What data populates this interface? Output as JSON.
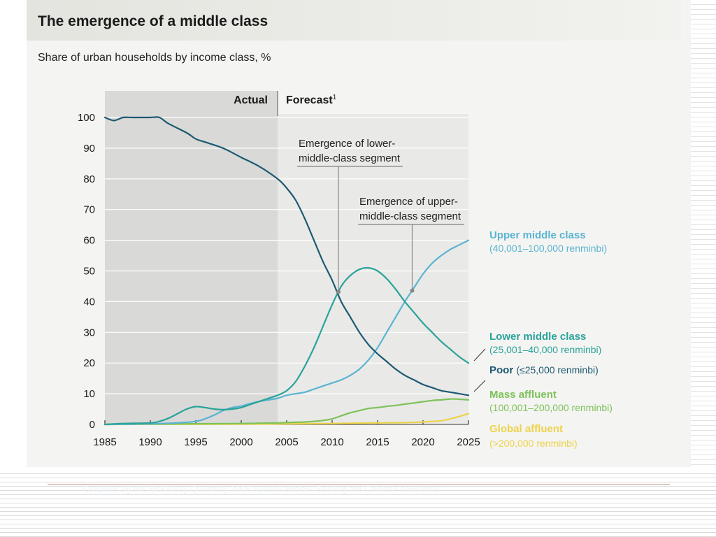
{
  "figure": {
    "title": "The emergence of a middle class",
    "subtitle": "Share of urban households by income class, %",
    "actual_label": "Actual",
    "forecast_label": "Forecast",
    "forecast_superscript": "1",
    "footer": "Graphics by the McKinsey Quarterly 2006 special edition: Serving the Chinese consumer"
  },
  "annotations": {
    "lower_line1": "Emergence of lower-",
    "lower_line2": "middle-class segment",
    "upper_line1": "Emergence of upper-",
    "upper_line2": "middle-class segment"
  },
  "legend": [
    {
      "name": "Upper middle class",
      "range": "(40,001–100,000 renminbi)",
      "color": "#5ab4d2"
    },
    {
      "name": "Lower middle class",
      "range": "(25,001–40,000 renminbi)",
      "color": "#2aa39a"
    },
    {
      "name": "Poor",
      "range": "(≤25,000 renminbi)",
      "color": "#1d5a72"
    },
    {
      "name": "Mass affluent",
      "range": "(100,001–200,000 renminbi)",
      "color": "#7dc25a"
    },
    {
      "name": "Global affluent",
      "range": "(>200,000 renminbi)",
      "color": "#ecd34a"
    }
  ],
  "chart_data": {
    "type": "line",
    "title": "The emergence of a middle class",
    "subtitle": "Share of urban households by income class, %",
    "x_ticks": [
      1985,
      1990,
      1995,
      2000,
      2005,
      2010,
      2015,
      2020,
      2025
    ],
    "y_ticks": [
      0,
      10,
      20,
      30,
      40,
      50,
      60,
      70,
      80,
      90,
      100
    ],
    "xlim": [
      1985,
      2025
    ],
    "ylim": [
      0,
      100
    ],
    "actual_range": [
      1985,
      2004
    ],
    "forecast_range": [
      2004,
      2025
    ],
    "grid": true,
    "legend_placement": "right",
    "series": [
      {
        "name": "Poor",
        "color": "#1d5a72",
        "x": [
          1985,
          1986,
          1987,
          1988,
          1990,
          1991,
          1992,
          1994,
          1995,
          1996,
          1998,
          2000,
          2002,
          2004,
          2005,
          2006,
          2007,
          2008,
          2009,
          2010,
          2011,
          2012,
          2013,
          2014,
          2015,
          2016,
          2017,
          2018,
          2019,
          2020,
          2021,
          2022,
          2023,
          2024,
          2025
        ],
        "y": [
          100,
          99,
          100,
          100,
          100,
          100,
          98,
          95,
          93,
          92,
          90,
          87,
          84,
          80,
          77,
          73,
          67,
          60,
          53,
          47,
          40,
          35,
          30,
          26,
          23,
          20.5,
          18,
          16,
          14.5,
          13,
          12,
          11,
          10.5,
          10,
          9.5
        ]
      },
      {
        "name": "Lower middle class",
        "color": "#2aa39a",
        "x": [
          1985,
          1987,
          1990,
          1991,
          1992,
          1993,
          1994,
          1995,
          1996,
          1997,
          1998,
          1999,
          2000,
          2001,
          2002,
          2003,
          2004,
          2005,
          2006,
          2007,
          2008,
          2009,
          2010,
          2011,
          2012,
          2013,
          2014,
          2015,
          2016,
          2017,
          2018,
          2019,
          2020,
          2021,
          2022,
          2023,
          2024,
          2025
        ],
        "y": [
          0,
          0.3,
          0.5,
          1,
          2,
          3.5,
          5,
          5.8,
          5.5,
          5,
          4.8,
          5,
          5.5,
          6.5,
          7.5,
          8.5,
          9.5,
          11,
          14,
          19,
          25,
          32,
          39,
          45,
          48.5,
          50.5,
          51,
          50,
          47.5,
          44,
          40,
          36.5,
          33,
          30,
          27,
          24.5,
          22,
          20
        ]
      },
      {
        "name": "Upper middle class",
        "color": "#5ab4d2",
        "x": [
          1985,
          1990,
          1993,
          1995,
          1996,
          1997,
          1998,
          1999,
          2000,
          2001,
          2002,
          2003,
          2004,
          2005,
          2006,
          2007,
          2008,
          2009,
          2010,
          2011,
          2012,
          2013,
          2014,
          2015,
          2016,
          2017,
          2018,
          2019,
          2020,
          2021,
          2022,
          2023,
          2024,
          2025
        ],
        "y": [
          0,
          0.2,
          0.5,
          1,
          1.8,
          3,
          4.5,
          5.5,
          6,
          6.8,
          7.5,
          8,
          8.5,
          9.5,
          10,
          10.5,
          11.5,
          12.5,
          13.5,
          14.5,
          16,
          18,
          21,
          25,
          30,
          35,
          40,
          44.5,
          49,
          52.5,
          55,
          57,
          58.5,
          60
        ]
      },
      {
        "name": "Mass affluent",
        "color": "#7dc25a",
        "x": [
          1985,
          1995,
          2000,
          2004,
          2005,
          2006,
          2007,
          2008,
          2009,
          2010,
          2011,
          2012,
          2013,
          2014,
          2015,
          2016,
          2017,
          2018,
          2019,
          2020,
          2021,
          2022,
          2023,
          2024,
          2025
        ],
        "y": [
          0,
          0.2,
          0.3,
          0.5,
          0.6,
          0.7,
          0.8,
          1,
          1.3,
          1.8,
          2.8,
          3.8,
          4.5,
          5.2,
          5.5,
          5.9,
          6.2,
          6.6,
          7,
          7.4,
          7.8,
          8,
          8.3,
          8.2,
          8
        ]
      },
      {
        "name": "Global affluent",
        "color": "#ecd34a",
        "x": [
          1985,
          2000,
          2005,
          2010,
          2015,
          2018,
          2020,
          2022,
          2023,
          2024,
          2025
        ],
        "y": [
          0,
          0.1,
          0.2,
          0.3,
          0.5,
          0.6,
          0.8,
          1.2,
          1.8,
          2.6,
          3.5
        ]
      }
    ]
  }
}
